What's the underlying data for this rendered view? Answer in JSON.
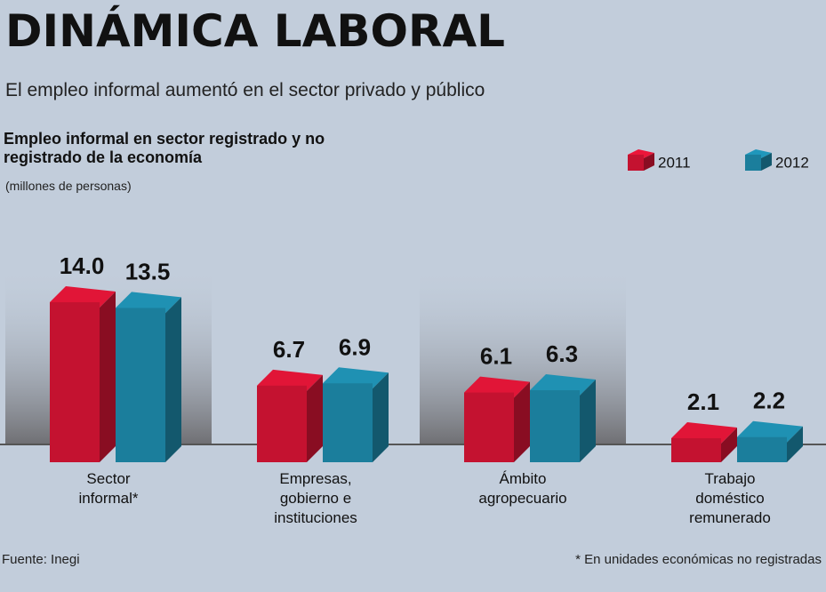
{
  "chart_data": {
    "type": "bar3d",
    "title": "DINÁMICA LABORAL",
    "subtitle": "El empleo informal aumentó en el sector privado y público",
    "chart_title": "Empleo informal en sector registrado y no registrado de la economía",
    "units": "(millones de personas)",
    "categories": [
      "Sector informal*",
      "Empresas, gobierno e instituciones",
      "Ámbito agropecuario",
      "Trabajo doméstico remunerado"
    ],
    "series": [
      {
        "name": "2011",
        "color": "#c41230",
        "values": [
          14,
          6.7,
          6.1,
          2.1
        ],
        "value_labels": [
          "14.0",
          "6.7",
          "6.1",
          "2.1"
        ]
      },
      {
        "name": "2012",
        "color": "#1b7e9c",
        "values": [
          13.5,
          6.9,
          6.3,
          2.2
        ]
      }
    ],
    "source": "Fuente: Inegi",
    "footnote": "* En unidades económicas no registradas"
  }
}
